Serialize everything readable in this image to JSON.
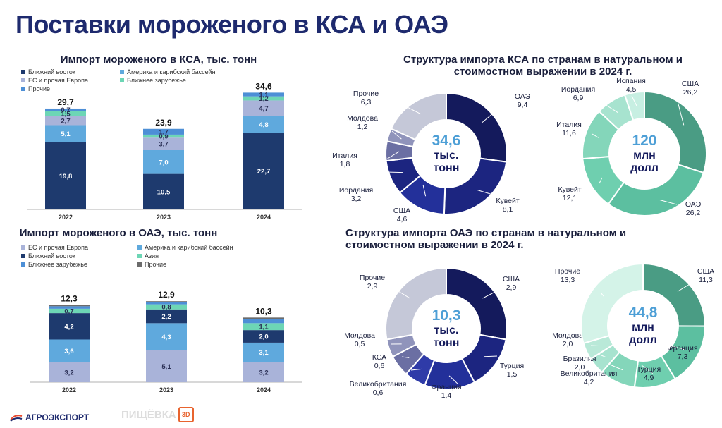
{
  "page_title": "Поставки мороженого в КСА и ОАЭ",
  "colors": {
    "navy": "#1e3a6e",
    "mid_blue": "#5fa9dd",
    "lavender": "#a9b3d9",
    "mint": "#6dd6b5",
    "light_blue": "#4d8fd6",
    "gray": "#6b6b6b",
    "donut_dark": "#141a5c",
    "donut_mid": "#1f2a8a",
    "donut_gray": "#c5c8d8",
    "green_dark": "#3e9a7f",
    "green_mid": "#5cbfa0",
    "green_light": "#8fd9c2",
    "green_pale": "#c7efe2",
    "center_text": "#4d9fd6"
  },
  "footer": {
    "left": "АГРОЭКСПОРТ",
    "right": "ПИЩЁВКА"
  },
  "chart_data": [
    {
      "id": "ksa_import",
      "type": "bar",
      "stacked": true,
      "title": "Импорт мороженого в КСА, тыс. тонн",
      "categories": [
        "2022",
        "2023",
        "2024"
      ],
      "totals": [
        "29,7",
        "23,9",
        "34,6"
      ],
      "series": [
        {
          "name": "Ближний восток",
          "color": "#1e3a6e",
          "values": [
            19.8,
            10.5,
            22.7
          ],
          "labels": [
            "19,8",
            "10,5",
            "22,7"
          ]
        },
        {
          "name": "Америка и карибский бассейн",
          "color": "#5fa9dd",
          "values": [
            5.1,
            7.0,
            4.8
          ],
          "labels": [
            "5,1",
            "7,0",
            "4,8"
          ]
        },
        {
          "name": "ЕС и прочая Европа",
          "color": "#a9b3d9",
          "values": [
            2.7,
            3.7,
            4.7
          ],
          "labels": [
            "2,7",
            "3,7",
            "4,7"
          ]
        },
        {
          "name": "Ближнее зарубежье",
          "color": "#6dd6b5",
          "values": [
            1.5,
            0.9,
            1.2
          ],
          "labels": [
            "1,5",
            "0,9",
            "1,2"
          ]
        },
        {
          "name": "Прочие",
          "color": "#4d8fd6",
          "values": [
            0.7,
            1.7,
            1.1
          ],
          "labels": [
            "0,7",
            "1,7",
            "1,1"
          ]
        }
      ]
    },
    {
      "id": "uae_import",
      "type": "bar",
      "stacked": true,
      "title": "Импорт мороженого в ОАЭ, тыс. тонн",
      "categories": [
        "2022",
        "2023",
        "2024"
      ],
      "totals": [
        "12,3",
        "12,9",
        "10,3"
      ],
      "series": [
        {
          "name": "ЕС и прочая Европа",
          "color": "#a9b3d9",
          "values": [
            3.2,
            5.1,
            3.2
          ],
          "labels": [
            "3,2",
            "5,1",
            "3,2"
          ]
        },
        {
          "name": "Америка и карибский бассейн",
          "color": "#5fa9dd",
          "values": [
            3.6,
            4.3,
            3.1
          ],
          "labels": [
            "3,6",
            "4,3",
            "3,1"
          ]
        },
        {
          "name": "Ближний восток",
          "color": "#1e3a6e",
          "values": [
            4.2,
            2.2,
            2.0
          ],
          "labels": [
            "4,2",
            "2,2",
            "2,0"
          ]
        },
        {
          "name": "Ближнее зарубежье",
          "color": "#6dd6b5",
          "values": [
            0.7,
            0.8,
            1.1
          ],
          "labels": [
            "0,7",
            "0,8",
            "1,1"
          ]
        },
        {
          "name": "Азия",
          "color": "#4d8fd6",
          "values": [
            0.4,
            0.3,
            0.6
          ],
          "labels": [
            "",
            "",
            ""
          ]
        },
        {
          "name": "Прочие",
          "color": "#6b6b6b",
          "values": [
            0.2,
            0.2,
            0.3
          ],
          "labels": [
            "",
            "",
            ""
          ]
        }
      ]
    },
    {
      "id": "ksa_volume",
      "type": "pie",
      "donut": true,
      "group_title": "Структура импорта КСА по странам в натуральном и стоимостном выражении в 2024 г.",
      "center": [
        "34,6",
        "тыс.",
        "тонн"
      ],
      "slices": [
        {
          "name": "ОАЭ",
          "value": 9.4,
          "label": "9,4",
          "color": "#141a5c"
        },
        {
          "name": "Кувейт",
          "value": 8.1,
          "label": "8,1",
          "color": "#1c2580"
        },
        {
          "name": "США",
          "value": 4.6,
          "label": "4,6",
          "color": "#23309a"
        },
        {
          "name": "Иордания",
          "value": 3.2,
          "label": "3,2",
          "color": "#1c2580"
        },
        {
          "name": "Италия",
          "value": 1.8,
          "label": "1,8",
          "color": "#6b6fa3"
        },
        {
          "name": "Молдова",
          "value": 1.2,
          "label": "1,2",
          "color": "#9094bb"
        },
        {
          "name": "Прочие",
          "value": 6.3,
          "label": "6,3",
          "color": "#c5c8d8"
        }
      ]
    },
    {
      "id": "ksa_value",
      "type": "pie",
      "donut": true,
      "center": [
        "120",
        "млн",
        "долл"
      ],
      "slices": [
        {
          "name": "США",
          "value": 26.2,
          "label": "26,2",
          "color": "#4a9c84"
        },
        {
          "name": "ОАЭ",
          "value": 26.2,
          "label": "26,2",
          "color": "#5cbfa0"
        },
        {
          "name": "Кувейт",
          "value": 12.1,
          "label": "12,1",
          "color": "#6fcfaf"
        },
        {
          "name": "Италия",
          "value": 11.6,
          "label": "11,6",
          "color": "#84d6ba"
        },
        {
          "name": "Иордания",
          "value": 6.9,
          "label": "6,9",
          "color": "#a7e3cf"
        },
        {
          "name": "Испания",
          "value": 4.5,
          "label": "4,5",
          "color": "#c7efe2"
        }
      ]
    },
    {
      "id": "uae_volume",
      "type": "pie",
      "donut": true,
      "group_title": "Структура импорта ОАЭ по странам в натуральном и стоимостном выражении в 2024 г.",
      "center": [
        "10,3",
        "тыс.",
        "тонн"
      ],
      "slices": [
        {
          "name": "США",
          "value": 2.9,
          "label": "2,9",
          "color": "#141a5c"
        },
        {
          "name": "Турция",
          "value": 1.5,
          "label": "1,5",
          "color": "#1c2580"
        },
        {
          "name": "Франция",
          "value": 1.4,
          "label": "1,4",
          "color": "#23309a"
        },
        {
          "name": "Великобритания",
          "value": 0.6,
          "label": "0,6",
          "color": "#2f3ba8"
        },
        {
          "name": "КСА",
          "value": 0.6,
          "label": "0,6",
          "color": "#6b6fa3"
        },
        {
          "name": "Молдова",
          "value": 0.5,
          "label": "0,5",
          "color": "#9094bb"
        },
        {
          "name": "Прочие",
          "value": 2.9,
          "label": "2,9",
          "color": "#c5c8d8"
        }
      ]
    },
    {
      "id": "uae_value",
      "type": "pie",
      "donut": true,
      "center": [
        "44,8",
        "млн",
        "долл"
      ],
      "slices": [
        {
          "name": "США",
          "value": 11.3,
          "label": "11,3",
          "color": "#4a9c84"
        },
        {
          "name": "Франция",
          "value": 7.3,
          "label": "7,3",
          "color": "#5cbfa0"
        },
        {
          "name": "Турция",
          "value": 4.9,
          "label": "4,9",
          "color": "#6fcfaf"
        },
        {
          "name": "Великобритания",
          "value": 4.2,
          "label": "4,2",
          "color": "#84d6ba"
        },
        {
          "name": "Бразилия",
          "value": 2.0,
          "label": "2,0",
          "color": "#a7e3cf"
        },
        {
          "name": "Молдова",
          "value": 2.0,
          "label": "2,0",
          "color": "#b9e9d8"
        },
        {
          "name": "Прочие",
          "value": 13.3,
          "label": "13,3",
          "color": "#d4f3e8"
        }
      ]
    }
  ]
}
